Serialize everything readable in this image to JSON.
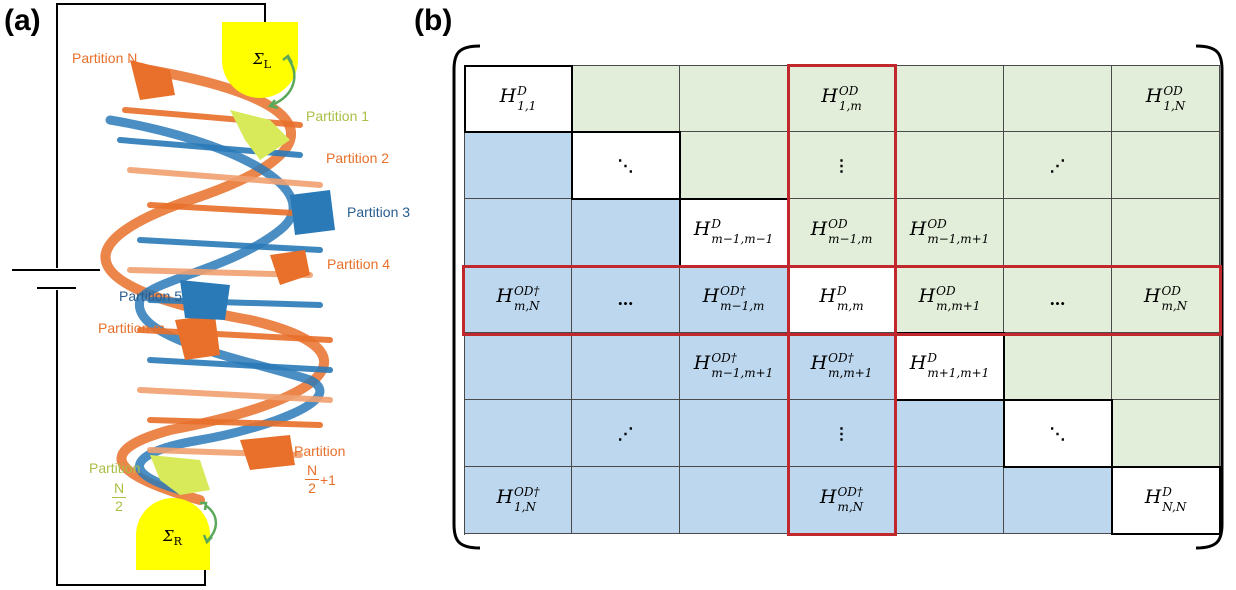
{
  "panel_a": {
    "letter": "(a)",
    "sigma_left": "Σ",
    "sigma_left_sub": "L",
    "sigma_right": "Σ",
    "sigma_right_sub": "R",
    "labels": {
      "partition_N": "Partition N",
      "partition_1": "Partition 1",
      "partition_2": "Partition 2",
      "partition_3": "Partition 3",
      "partition_4": "Partition 4",
      "partition_5": "Partition 5",
      "partition_m": "Partition m",
      "partition_left": "Partition",
      "partition_right": "Partition",
      "frac_left_num": "N",
      "frac_left_den": "2",
      "frac_right_num": "N",
      "frac_right_den": "2",
      "frac_right_suffix": "+1"
    },
    "colors": {
      "orange": "#e8702a",
      "blue": "#2a7ab8",
      "lime": "#d8ea5a",
      "yellow": "#ffff00",
      "arrow": "#5aa95a"
    }
  },
  "panel_b": {
    "letter": "(b)",
    "rows": [
      [
        {
          "t": "math",
          "H": "H",
          "sp": "D",
          "sb": "1,1",
          "c": "white"
        },
        {
          "t": "empty",
          "c": "green"
        },
        {
          "t": "empty",
          "c": "green"
        },
        {
          "t": "math",
          "H": "H",
          "sp": "OD",
          "sb": "1,m",
          "c": "green"
        },
        {
          "t": "empty",
          "c": "green"
        },
        {
          "t": "empty",
          "c": "green"
        },
        {
          "t": "math",
          "H": "H",
          "sp": "OD",
          "sb": "1,N",
          "c": "green"
        }
      ],
      [
        {
          "t": "empty",
          "c": "blue"
        },
        {
          "t": "dots",
          "v": "⋱",
          "c": "white"
        },
        {
          "t": "empty",
          "c": "green"
        },
        {
          "t": "dots",
          "v": "⋮",
          "c": "green"
        },
        {
          "t": "empty",
          "c": "green"
        },
        {
          "t": "dots",
          "v": "⋰",
          "c": "green"
        },
        {
          "t": "empty",
          "c": "green"
        }
      ],
      [
        {
          "t": "empty",
          "c": "blue"
        },
        {
          "t": "empty",
          "c": "blue"
        },
        {
          "t": "math",
          "H": "H",
          "sp": "D",
          "sb": "m−1,m−1",
          "c": "white"
        },
        {
          "t": "math",
          "H": "H",
          "sp": "OD",
          "sb": "m−1,m",
          "c": "green"
        },
        {
          "t": "math",
          "H": "H",
          "sp": "OD",
          "sb": "m−1,m+1",
          "c": "green"
        },
        {
          "t": "empty",
          "c": "green"
        },
        {
          "t": "empty",
          "c": "green"
        }
      ],
      [
        {
          "t": "math",
          "H": "H",
          "sp": "OD†",
          "sb": "m,N",
          "c": "blue"
        },
        {
          "t": "dots",
          "v": "…",
          "c": "blue"
        },
        {
          "t": "math",
          "H": "H",
          "sp": "OD†",
          "sb": "m−1,m",
          "c": "blue"
        },
        {
          "t": "math",
          "H": "H",
          "sp": "D",
          "sb": "m,m",
          "c": "white"
        },
        {
          "t": "math",
          "H": "H",
          "sp": "OD",
          "sb": "m,m+1",
          "c": "green"
        },
        {
          "t": "dots",
          "v": "…",
          "c": "green"
        },
        {
          "t": "math",
          "H": "H",
          "sp": "OD",
          "sb": "m,N",
          "c": "green"
        }
      ],
      [
        {
          "t": "empty",
          "c": "blue"
        },
        {
          "t": "empty",
          "c": "blue"
        },
        {
          "t": "math",
          "H": "H",
          "sp": "OD†",
          "sb": "m−1,m+1",
          "c": "blue"
        },
        {
          "t": "math",
          "H": "H",
          "sp": "OD†",
          "sb": "m,m+1",
          "c": "blue"
        },
        {
          "t": "math",
          "H": "H",
          "sp": "D",
          "sb": "m+1,m+1",
          "c": "white"
        },
        {
          "t": "empty",
          "c": "green"
        },
        {
          "t": "empty",
          "c": "green"
        }
      ],
      [
        {
          "t": "empty",
          "c": "blue"
        },
        {
          "t": "dots",
          "v": "⋰",
          "c": "blue"
        },
        {
          "t": "empty",
          "c": "blue"
        },
        {
          "t": "dots",
          "v": "⋮",
          "c": "blue"
        },
        {
          "t": "empty",
          "c": "blue"
        },
        {
          "t": "dots",
          "v": "⋱",
          "c": "white"
        },
        {
          "t": "empty",
          "c": "green"
        }
      ],
      [
        {
          "t": "math",
          "H": "H",
          "sp": "OD†",
          "sb": "1,N",
          "c": "blue"
        },
        {
          "t": "empty",
          "c": "blue"
        },
        {
          "t": "empty",
          "c": "blue"
        },
        {
          "t": "math",
          "H": "H",
          "sp": "OD†",
          "sb": "m,N",
          "c": "blue"
        },
        {
          "t": "empty",
          "c": "blue"
        },
        {
          "t": "empty",
          "c": "blue"
        },
        {
          "t": "math",
          "H": "H",
          "sp": "D",
          "sb": "N,N",
          "c": "white"
        }
      ]
    ],
    "colors": {
      "green": "#e2eed9",
      "blue": "#bdd7ee",
      "white": "#ffffff",
      "highlight": "#c0282d"
    }
  }
}
